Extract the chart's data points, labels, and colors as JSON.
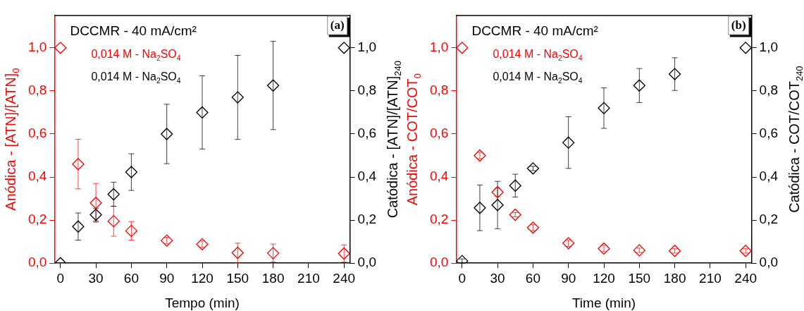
{
  "chart_data": [
    {
      "type": "scatter",
      "legend_title": "DCCMR - 40 mA/cm²",
      "xlabel": "Tempo (min)",
      "ylabel": "Anódica - [ATN]/[ATN]$_{0}$",
      "y2label": "Catódica - [ATN]/[ATN]$_{240}$",
      "annotations": [
        "(a)"
      ],
      "x": [
        0,
        15,
        30,
        45,
        60,
        90,
        120,
        150,
        180,
        240
      ],
      "series": [
        {
          "name": "0,014 M - Na$_{2}$SO$_{4}$",
          "color": "#ff0000",
          "values": [
            1.0,
            0.46,
            0.28,
            0.195,
            0.15,
            0.105,
            0.088,
            0.048,
            0.047,
            0.045
          ],
          "errors": [
            null,
            0.115,
            0.09,
            0.07,
            0.043,
            0.015,
            0.015,
            0.045,
            0.042,
            0.04
          ]
        },
        {
          "name": "0,014 M - Na$_{2}$SO$_{4}$",
          "color": "#000000",
          "axis": "y2",
          "values": [
            0.0,
            0.17,
            0.225,
            0.32,
            0.423,
            0.6,
            0.7,
            0.77,
            0.825,
            1.0
          ],
          "errors": [
            null,
            0.063,
            0.03,
            0.056,
            0.085,
            0.138,
            0.17,
            0.195,
            0.205,
            null
          ]
        }
      ],
      "xlim": [
        -5,
        245
      ],
      "xticks": [
        0,
        30,
        60,
        90,
        120,
        150,
        180,
        210,
        240
      ],
      "ylim": [
        0,
        1.15
      ],
      "yticks": [
        {
          "value": 0,
          "label": "0,0"
        },
        {
          "value": 0.2,
          "label": "0,2"
        },
        {
          "value": 0.4,
          "label": "0,4"
        },
        {
          "value": 0.6,
          "label": "0,6"
        },
        {
          "value": 0.8,
          "label": "0,8"
        },
        {
          "value": 1,
          "label": "1,0"
        }
      ],
      "y2lim": [
        0,
        1.15
      ],
      "y2ticks": [
        {
          "value": 0,
          "label": "0,0"
        },
        {
          "value": 0.2,
          "label": "0,2"
        },
        {
          "value": 0.4,
          "label": "0,4"
        },
        {
          "value": 0.6,
          "label": "0,6"
        },
        {
          "value": 0.8,
          "label": "0,8"
        },
        {
          "value": 1,
          "label": "1,0"
        }
      ],
      "grid": false,
      "legend": "top left",
      "marker": "diamond"
    },
    {
      "type": "scatter",
      "legend_title": "DCCMR - 40 mA/cm²",
      "xlabel": "Time (min)",
      "ylabel": "Anódica - COT/COT$_{0}$",
      "y2label": "Catódica - COT/COT$_{240}$",
      "annotations": [
        "(b)"
      ],
      "x": [
        0,
        15,
        30,
        45,
        60,
        90,
        120,
        150,
        180,
        240
      ],
      "series": [
        {
          "name": "0,014 M - Na$_{2}$SO$_{4}$",
          "color": "#ff0000",
          "values": [
            1.0,
            0.5,
            0.33,
            0.225,
            0.165,
            0.093,
            0.068,
            0.06,
            0.057,
            0.057
          ],
          "errors": [
            null,
            0.015,
            0.02,
            0.01,
            0.015,
            0.015,
            0.015,
            0.01,
            0.01,
            0.01
          ]
        },
        {
          "name": "0,014 M - Na$_{2}$SO$_{4}$",
          "color": "#000000",
          "axis": "y2",
          "values": [
            0.01,
            0.257,
            0.27,
            0.36,
            0.44,
            0.56,
            0.72,
            0.825,
            0.878,
            1.0
          ],
          "errors": [
            0.01,
            0.106,
            0.11,
            0.053,
            0.01,
            0.12,
            0.094,
            0.079,
            0.076,
            null
          ]
        }
      ],
      "xlim": [
        -5,
        245
      ],
      "xticks": [
        0,
        30,
        60,
        90,
        120,
        150,
        180,
        210,
        240
      ],
      "ylim": [
        0,
        1.15
      ],
      "yticks": [
        {
          "value": 0,
          "label": "0,0"
        },
        {
          "value": 0.2,
          "label": "0,2"
        },
        {
          "value": 0.4,
          "label": "0,4"
        },
        {
          "value": 0.6,
          "label": "0,6"
        },
        {
          "value": 0.8,
          "label": "0,8"
        },
        {
          "value": 1,
          "label": "1,0"
        }
      ],
      "y2lim": [
        0,
        1.15
      ],
      "y2ticks": [
        {
          "value": 0,
          "label": "0,0"
        },
        {
          "value": 0.2,
          "label": "0,2"
        },
        {
          "value": 0.4,
          "label": "0,4"
        },
        {
          "value": 0.6,
          "label": "0,6"
        },
        {
          "value": 0.8,
          "label": "0,8"
        },
        {
          "value": 1,
          "label": "1,0"
        }
      ],
      "grid": false,
      "legend": "top left",
      "marker": "diamond"
    }
  ]
}
